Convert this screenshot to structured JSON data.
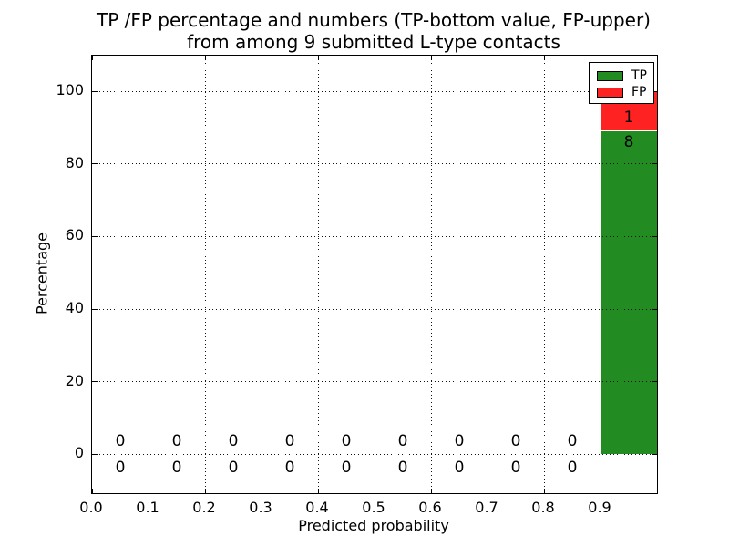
{
  "chart_data": {
    "type": "bar",
    "stacked": true,
    "title": "TP /FP percentage and numbers (TP-bottom value, FP-upper)\nfrom among 9 submitted L-type contacts",
    "title_lines": [
      "TP /FP percentage and numbers (TP-bottom value, FP-upper)",
      "from among 9 submitted L-type contacts"
    ],
    "xlabel": "Predicted probability",
    "ylabel": "Percentage",
    "total_contacts": 9,
    "bin_edges": [
      0.0,
      0.1,
      0.2,
      0.3,
      0.4,
      0.5,
      0.6,
      0.7,
      0.8,
      0.9,
      1.0
    ],
    "categories": [
      0.05,
      0.15,
      0.25,
      0.35,
      0.45,
      0.55,
      0.65,
      0.75,
      0.85,
      0.95
    ],
    "series": [
      {
        "name": "TP",
        "color": "#228b22",
        "counts": [
          0,
          0,
          0,
          0,
          0,
          0,
          0,
          0,
          0,
          8
        ],
        "percentages": [
          0,
          0,
          0,
          0,
          0,
          0,
          0,
          0,
          0,
          88.89
        ]
      },
      {
        "name": "FP",
        "color": "#ff2222",
        "counts": [
          0,
          0,
          0,
          0,
          0,
          0,
          0,
          0,
          0,
          1
        ],
        "percentages": [
          0,
          0,
          0,
          0,
          0,
          0,
          0,
          0,
          0,
          11.11
        ]
      }
    ],
    "xticks": [
      "0.0",
      "0.1",
      "0.2",
      "0.3",
      "0.4",
      "0.5",
      "0.6",
      "0.7",
      "0.8",
      "0.9"
    ],
    "yticks": [
      0,
      20,
      40,
      60,
      80,
      100
    ],
    "xlim": [
      0.0,
      1.0
    ],
    "ylim": [
      -10.7,
      109.8
    ],
    "grid": "dotted",
    "legend": {
      "position": "upper right",
      "entries": [
        "TP",
        "FP"
      ]
    }
  }
}
